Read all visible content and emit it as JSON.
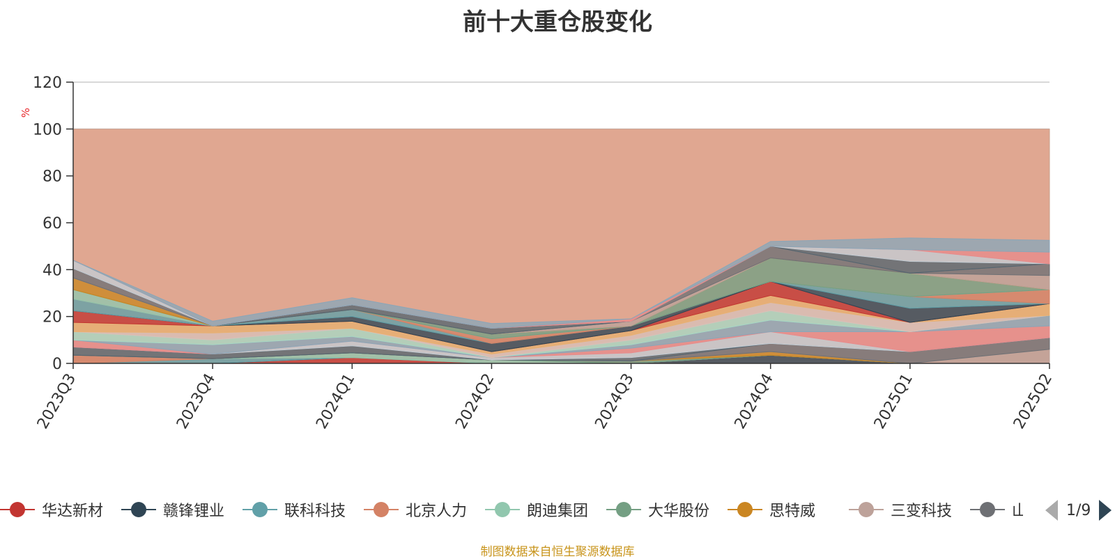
{
  "chart_data": {
    "type": "area",
    "title": "前十大重仓股变化",
    "ylabel": "%",
    "ylim": [
      0,
      120
    ],
    "yticks": [
      "0",
      "20",
      "40",
      "60",
      "80",
      "100",
      "120"
    ],
    "categories": [
      "2023Q3",
      "2023Q4",
      "2024Q1",
      "2024Q2",
      "2024Q3",
      "2024Q4",
      "2025Q1",
      "2025Q2"
    ],
    "stacked": true,
    "legend_position": "bottom",
    "background_series": {
      "values": [
        100,
        100,
        100,
        100,
        100,
        100,
        100,
        100
      ],
      "color": "#e0a791"
    },
    "series": [
      {
        "name": "华达新材",
        "color": "#c23531",
        "values": [
          0,
          0,
          2.5,
          0,
          0,
          0,
          0,
          0
        ]
      },
      {
        "name": "赣锋锂业",
        "color": "#2f4554",
        "values": [
          0,
          0,
          0,
          0,
          0,
          3.5,
          0,
          0
        ]
      },
      {
        "name": "联科科技",
        "color": "#61a0a8",
        "values": [
          0,
          2,
          0,
          0,
          0,
          0,
          0,
          0
        ]
      },
      {
        "name": "北京人力",
        "color": "#d48265",
        "values": [
          3.5,
          0,
          0,
          0,
          0,
          0,
          0,
          0
        ]
      },
      {
        "name": "朗迪集团",
        "color": "#91c7ae",
        "values": [
          0,
          0,
          2,
          1.5,
          0,
          0,
          0,
          0
        ]
      },
      {
        "name": "大华股份",
        "color": "#749f83",
        "values": [
          0,
          0,
          0,
          0,
          1,
          0,
          0,
          0
        ]
      },
      {
        "name": "思特威",
        "color": "#ca8622",
        "values": [
          0,
          0,
          0,
          0,
          0,
          1.5,
          0,
          0
        ]
      },
      {
        "name": "三变科技",
        "color": "#bda29a",
        "values": [
          0,
          0,
          0,
          0,
          0,
          0,
          0,
          6
        ]
      },
      {
        "name": "山东黄金",
        "color": "#6e7074",
        "values": [
          0,
          0,
          0,
          0,
          0,
          3.5,
          5,
          5
        ]
      },
      {
        "values": [
          3.5,
          2,
          3,
          0,
          1.5,
          0,
          0,
          0
        ]
      },
      {
        "values": [
          0,
          0,
          2,
          1,
          2,
          5,
          0,
          0
        ]
      },
      {
        "values": [
          3,
          0,
          0,
          0,
          2,
          0,
          8.5,
          5
        ]
      },
      {
        "values": [
          0,
          4,
          2,
          0,
          1.5,
          5,
          0,
          4.5
        ]
      },
      {
        "values": [
          3.5,
          2,
          3.5,
          0,
          2,
          4,
          0,
          0
        ]
      },
      {
        "values": [
          0,
          3,
          0,
          1.5,
          2,
          3.5,
          4,
          0
        ]
      },
      {
        "values": [
          4,
          3,
          3,
          1,
          2,
          3,
          0,
          5
        ]
      },
      {
        "values": [
          5,
          0,
          0,
          0,
          0,
          6,
          0,
          0
        ]
      },
      {
        "values": [
          0,
          0,
          2,
          3.5,
          2,
          0,
          6,
          0
        ]
      },
      {
        "values": [
          5,
          0,
          3,
          0,
          0,
          0,
          5,
          0
        ]
      },
      {
        "values": [
          0,
          0,
          0,
          2,
          0,
          0,
          0,
          6
        ]
      },
      {
        "values": [
          4,
          0,
          0,
          0,
          0,
          0,
          0,
          0
        ]
      },
      {
        "values": [
          0,
          0,
          0,
          2,
          0,
          10,
          10,
          0
        ]
      },
      {
        "values": [
          5,
          0,
          0,
          0,
          0,
          0,
          0,
          0
        ]
      },
      {
        "values": [
          0,
          0,
          0,
          0,
          2,
          0,
          0,
          6
        ]
      },
      {
        "values": [
          4,
          0,
          0,
          0,
          0,
          5,
          0,
          5
        ]
      },
      {
        "values": [
          0,
          0,
          2,
          2.5,
          0,
          0,
          5,
          0
        ]
      },
      {
        "values": [
          3.5,
          0,
          0,
          0,
          0,
          0,
          5,
          0
        ]
      },
      {
        "values": [
          0,
          0,
          0,
          0,
          1,
          0,
          0,
          5
        ]
      },
      {
        "values": [
          0,
          2,
          3,
          2,
          0,
          2,
          5,
          5
        ]
      }
    ]
  },
  "legend": {
    "pager": "1/9",
    "visible_items": [
      {
        "name": "华达新材",
        "color": "#c23531"
      },
      {
        "name": "赣锋锂业",
        "color": "#2f4554"
      },
      {
        "name": "联科科技",
        "color": "#61a0a8"
      },
      {
        "name": "北京人力",
        "color": "#d48265"
      },
      {
        "name": "朗迪集团",
        "color": "#91c7ae"
      },
      {
        "name": "大华股份",
        "color": "#749f83"
      },
      {
        "name": "思特威",
        "color": "#ca8622"
      },
      {
        "name": "三变科技",
        "color": "#bda29a"
      },
      {
        "name": "山东黄金",
        "color": "#6e7074"
      }
    ]
  },
  "footer": {
    "source_text": "制图数据来自恒生聚源数据库"
  }
}
